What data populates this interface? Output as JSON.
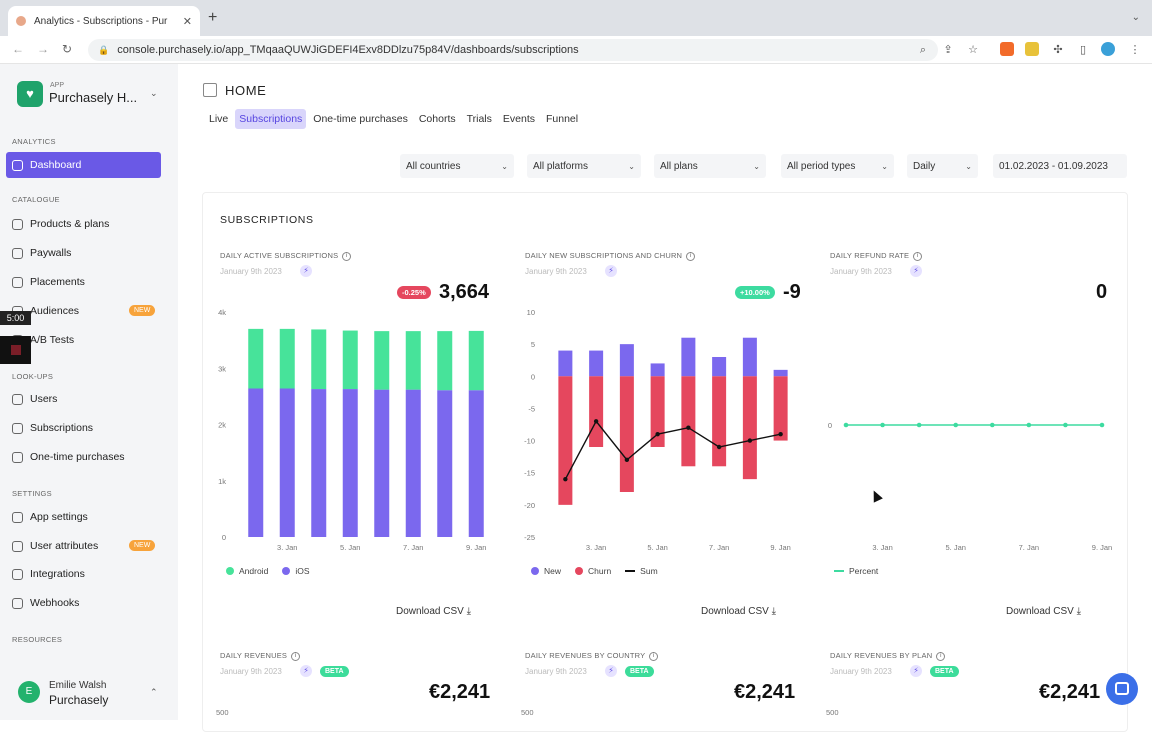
{
  "browser": {
    "tab_title": "Analytics - Subscriptions - Pur",
    "url": "console.purchasely.io/app_TMqaaQUWJiGDEFI4Exv8DDlzu75p84V/dashboards/subscriptions"
  },
  "sidebar": {
    "app_label": "APP",
    "app_name": "Purchasely H...",
    "sections": {
      "analytics": "ANALYTICS",
      "catalogue": "CATALOGUE",
      "lookups": "LOOK-UPS",
      "settings": "SETTINGS",
      "resources": "RESOURCES"
    },
    "items": {
      "dashboard": "Dashboard",
      "products": "Products & plans",
      "paywalls": "Paywalls",
      "placements": "Placements",
      "audiences": "Audiences",
      "ab_tests": "A/B Tests",
      "users": "Users",
      "subscriptions": "Subscriptions",
      "one_time": "One-time purchases",
      "app_settings": "App settings",
      "user_attributes": "User attributes",
      "integrations": "Integrations",
      "webhooks": "Webhooks"
    },
    "new_badge": "NEW",
    "timer": "5:00",
    "user_initial": "E",
    "user_name": "Emilie Walsh",
    "user_org": "Purchasely"
  },
  "header": {
    "home": "HOME",
    "tabs": [
      "Live",
      "Subscriptions",
      "One-time purchases",
      "Cohorts",
      "Trials",
      "Events",
      "Funnel"
    ]
  },
  "filters": {
    "countries": "All countries",
    "platforms": "All platforms",
    "plans": "All plans",
    "period_types": "All period types",
    "granularity": "Daily",
    "date_range": "01.02.2023 - 01.09.2023"
  },
  "section_title": "SUBSCRIPTIONS",
  "cards": {
    "active": {
      "title": "DAILY ACTIVE SUBSCRIPTIONS",
      "date": "January 9th 2023",
      "badge": "-0.25%",
      "value": "3,664"
    },
    "new_churn": {
      "title": "DAILY NEW SUBSCRIPTIONS AND CHURN",
      "date": "January 9th 2023",
      "badge": "+10.00%",
      "value": "-9"
    },
    "refund": {
      "title": "DAILY REFUND RATE",
      "date": "January 9th 2023",
      "value": "0"
    },
    "revenues": {
      "title": "DAILY REVENUES",
      "date": "January 9th 2023",
      "value": "€2,241",
      "beta": "BETA",
      "axis_top": "500"
    },
    "rev_country": {
      "title": "DAILY REVENUES BY COUNTRY",
      "date": "January 9th 2023",
      "value": "€2,241",
      "beta": "BETA",
      "axis_top": "500"
    },
    "rev_plan": {
      "title": "DAILY REVENUES BY PLAN",
      "date": "January 9th 2023",
      "value": "€2,241",
      "beta": "BETA",
      "axis_top": "500"
    }
  },
  "download_label": "Download CSV",
  "legends": {
    "android": "Android",
    "ios": "iOS",
    "new": "New",
    "churn": "Churn",
    "sum": "Sum",
    "percent": "Percent"
  },
  "colors": {
    "accent": "#6a59e6",
    "android": "#47e39a",
    "ios": "#7b68ee",
    "churn": "#e5475e",
    "refund": "#3ddba0"
  },
  "chart_data": [
    {
      "type": "bar",
      "title": "DAILY ACTIVE SUBSCRIPTIONS",
      "categories": [
        "2. Jan",
        "3. Jan",
        "4. Jan",
        "5. Jan",
        "6. Jan",
        "7. Jan",
        "8. Jan",
        "9. Jan"
      ],
      "x_tick_labels": [
        "3. Jan",
        "5. Jan",
        "7. Jan",
        "9. Jan"
      ],
      "y_tick_labels": [
        "0",
        "1k",
        "2k",
        "3k",
        "4k"
      ],
      "ylim": [
        0,
        4000
      ],
      "stacked": true,
      "series": [
        {
          "name": "iOS",
          "values": [
            2640,
            2640,
            2630,
            2630,
            2620,
            2620,
            2610,
            2610
          ]
        },
        {
          "name": "Android",
          "values": [
            1060,
            1060,
            1060,
            1040,
            1040,
            1040,
            1050,
            1054
          ]
        }
      ]
    },
    {
      "type": "bar",
      "title": "DAILY NEW SUBSCRIPTIONS AND CHURN",
      "categories": [
        "2. Jan",
        "3. Jan",
        "4. Jan",
        "5. Jan",
        "6. Jan",
        "7. Jan",
        "8. Jan",
        "9. Jan"
      ],
      "x_tick_labels": [
        "3. Jan",
        "5. Jan",
        "7. Jan",
        "9. Jan"
      ],
      "y_tick_labels": [
        "10",
        "5",
        "0",
        "-5",
        "-10",
        "-15",
        "-20",
        "-25"
      ],
      "ylim": [
        -25,
        10
      ],
      "series": [
        {
          "name": "New",
          "values": [
            4,
            4,
            5,
            2,
            6,
            3,
            6,
            1
          ]
        },
        {
          "name": "Churn",
          "values": [
            -20,
            -11,
            -18,
            -11,
            -14,
            -14,
            -16,
            -10
          ]
        },
        {
          "name": "Sum",
          "type": "line",
          "values": [
            -16,
            -7,
            -13,
            -9,
            -8,
            -11,
            -10,
            -9
          ]
        }
      ]
    },
    {
      "type": "line",
      "title": "DAILY REFUND RATE",
      "categories": [
        "2. Jan",
        "3. Jan",
        "4. Jan",
        "5. Jan",
        "6. Jan",
        "7. Jan",
        "8. Jan",
        "9. Jan"
      ],
      "x_tick_labels": [
        "3. Jan",
        "5. Jan",
        "7. Jan",
        "9. Jan"
      ],
      "y_tick_labels": [
        "0"
      ],
      "series": [
        {
          "name": "Percent",
          "values": [
            0,
            0,
            0,
            0,
            0,
            0,
            0,
            0
          ]
        }
      ]
    }
  ]
}
